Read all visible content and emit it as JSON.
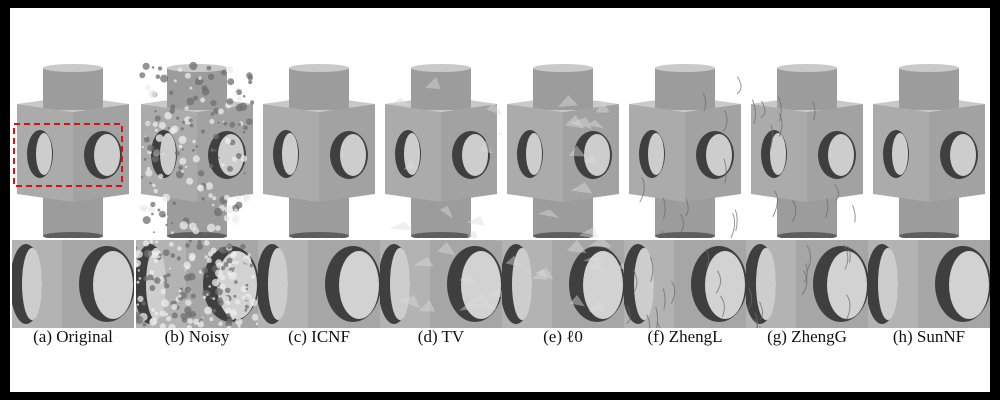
{
  "colors": {
    "mesh_light": "#c9c9c9",
    "mesh_mid": "#9c9c9c",
    "mesh_dark": "#5e5e5e",
    "highlight_box": "#e01010"
  },
  "figure": {
    "panels": [
      {
        "id": "a",
        "caption": "(a) Original",
        "style": "smooth"
      },
      {
        "id": "b",
        "caption": "(b) Noisy",
        "style": "noisy"
      },
      {
        "id": "c",
        "caption": "(c) ICNF",
        "style": "smooth"
      },
      {
        "id": "d",
        "caption": "(d) TV",
        "style": "faceted"
      },
      {
        "id": "e",
        "caption": "(e) ℓ0",
        "style": "faceted"
      },
      {
        "id": "f",
        "caption": "(f) ZhengL",
        "style": "wrinkled"
      },
      {
        "id": "g",
        "caption": "(g) ZhengG",
        "style": "wrinkled"
      },
      {
        "id": "h",
        "caption": "(h) SunNF",
        "style": "smooth"
      }
    ]
  }
}
